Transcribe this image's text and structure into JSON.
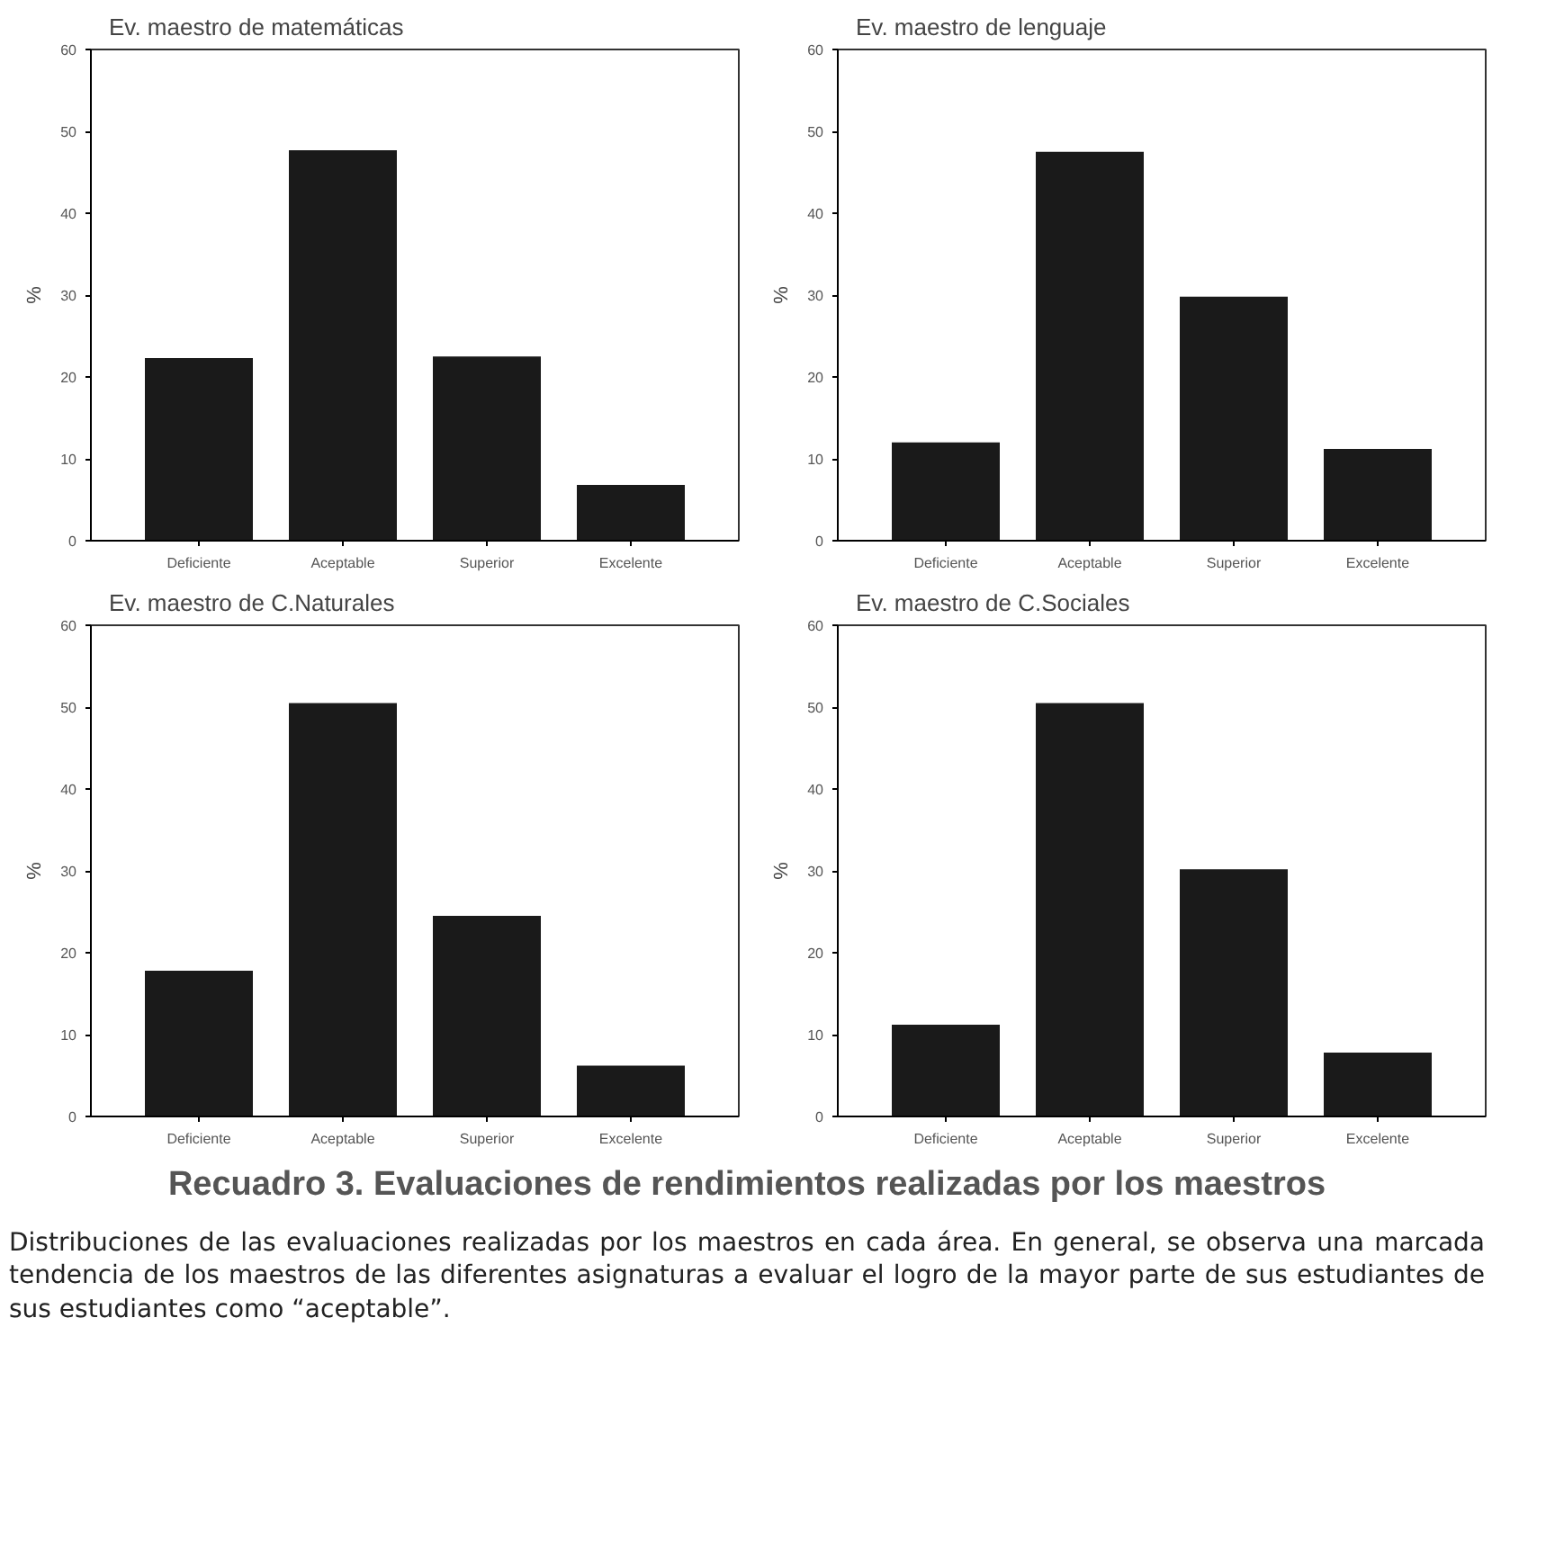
{
  "chart_data": [
    {
      "type": "bar",
      "title": "Ev. maestro de matemáticas",
      "ylabel": "%",
      "categories": [
        "Deficiente",
        "Aceptable",
        "Superior",
        "Excelente"
      ],
      "values": [
        22.3,
        47.7,
        22.5,
        6.8
      ],
      "color": "#1a1a1a",
      "ylim": [
        0,
        60
      ],
      "yticks": [
        0,
        10,
        20,
        30,
        40,
        50,
        60
      ],
      "grid": false
    },
    {
      "type": "bar",
      "title": "Ev. maestro de lenguaje",
      "ylabel": "%",
      "categories": [
        "Deficiente",
        "Aceptable",
        "Superior",
        "Excelente"
      ],
      "values": [
        12.0,
        47.5,
        29.8,
        11.2
      ],
      "color": "#1a1a1a",
      "ylim": [
        0,
        60
      ],
      "yticks": [
        0,
        10,
        20,
        30,
        40,
        50,
        60
      ],
      "grid": false
    },
    {
      "type": "bar",
      "title": "Ev. maestro de C.Naturales",
      "ylabel": "%",
      "categories": [
        "Deficiente",
        "Aceptable",
        "Superior",
        "Excelente"
      ],
      "values": [
        17.8,
        50.5,
        24.5,
        6.2
      ],
      "color": "#1a1a1a",
      "ylim": [
        0,
        60
      ],
      "yticks": [
        0,
        10,
        20,
        30,
        40,
        50,
        60
      ],
      "grid": false
    },
    {
      "type": "bar",
      "title": "Ev. maestro de C.Sociales",
      "ylabel": "%",
      "categories": [
        "Deficiente",
        "Aceptable",
        "Superior",
        "Excelente"
      ],
      "values": [
        11.2,
        50.5,
        30.2,
        7.8
      ],
      "color": "#1a1a1a",
      "ylim": [
        0,
        60
      ],
      "yticks": [
        0,
        10,
        20,
        30,
        40,
        50,
        60
      ],
      "grid": false,
      "annotations": [
        "Recuadro 3. Evaluaciones de rendimientos realizadas por los maestros",
        "Distribuciones de las evaluaciones realizadas por los maestros en cada área. En general, se observa una marcada tendencia de los maestros de las diferentes asignaturas a evaluar el logro de la mayor parte de sus estudiantes de sus estudiantes como “aceptable”."
      ]
    }
  ]
}
